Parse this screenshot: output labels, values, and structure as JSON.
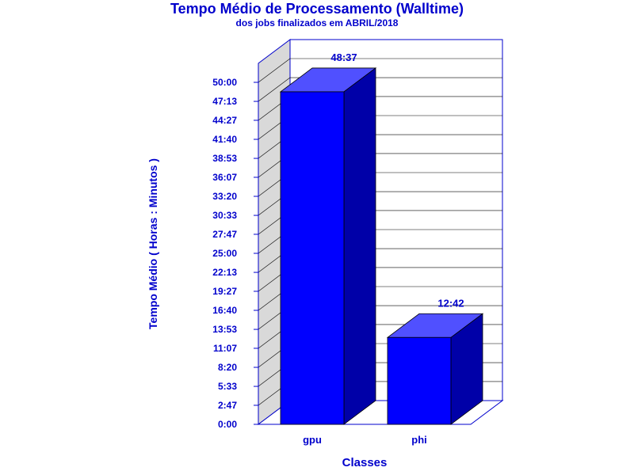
{
  "chart_data": {
    "type": "bar",
    "title": "Tempo Médio de Processamento (Walltime)",
    "subtitle": "dos jobs finalizados em ABRIL/2018",
    "xlabel": "Classes",
    "ylabel": "Tempo Médio ( Horas : Minutos )",
    "categories": [
      "gpu",
      "phi"
    ],
    "values": [
      48.617,
      12.7
    ],
    "value_labels": [
      "48:37",
      "12:42"
    ],
    "ylim": [
      0,
      50
    ],
    "ytick_values": [
      0,
      2.7833,
      5.55,
      8.3333,
      11.1167,
      13.8833,
      16.6667,
      19.45,
      22.2167,
      25,
      27.7833,
      30.55,
      33.3333,
      36.1167,
      38.8833,
      41.6667,
      44.45,
      47.2167,
      50
    ],
    "yticks": [
      "0:00",
      "2:47",
      "5:33",
      "8:20",
      "11:07",
      "13:53",
      "16:40",
      "19:27",
      "22:13",
      "25:00",
      "27:47",
      "30:33",
      "33:20",
      "36:07",
      "38:53",
      "41:40",
      "44:27",
      "47:13",
      "50:00"
    ],
    "grid": true,
    "colors": {
      "bar_front": "#0000ff",
      "bar_top": "#5050ff",
      "bar_side": "#0000a8",
      "wall": "#d9d9d9",
      "axis": "#0000cc",
      "grid": "#000000"
    }
  }
}
